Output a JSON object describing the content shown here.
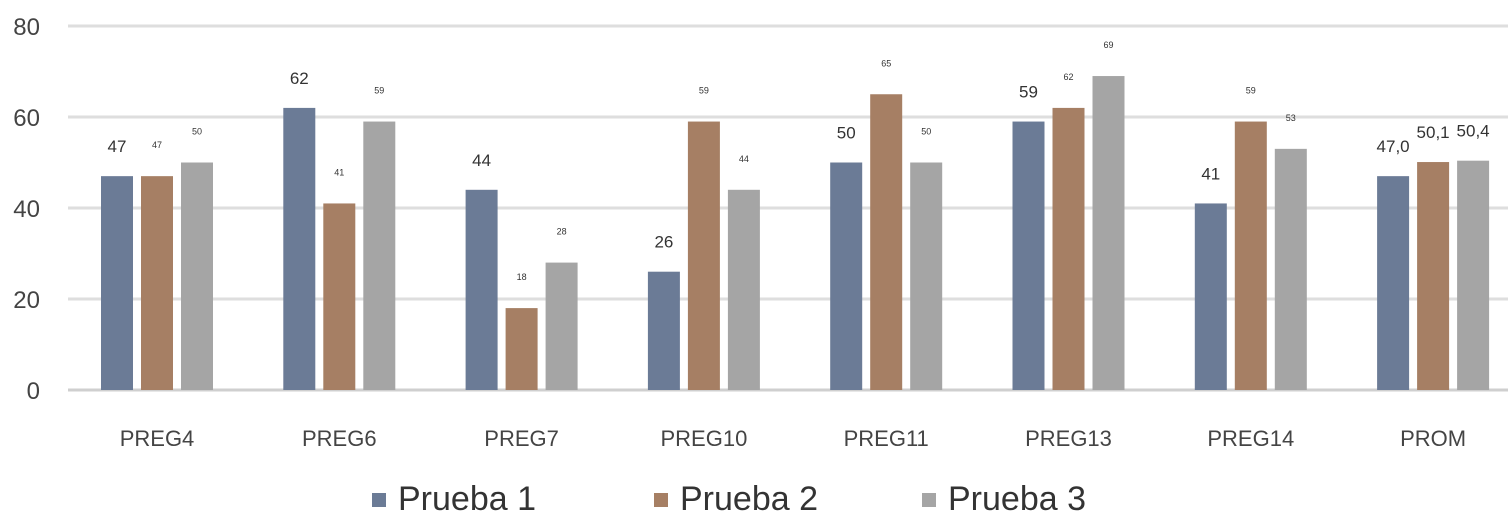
{
  "chart_data": {
    "type": "bar",
    "categories": [
      "PREG4",
      "PREG6",
      "PREG7",
      "PREG10",
      "PREG11",
      "PREG13",
      "PREG14",
      "PROM"
    ],
    "series": [
      {
        "name": "Prueba 1",
        "color": "#6b7b96",
        "values": [
          47,
          62,
          44,
          26,
          50,
          59,
          41,
          47.0
        ],
        "labels": [
          "47",
          "62",
          "44",
          "26",
          "50",
          "59",
          "41",
          "47,0"
        ]
      },
      {
        "name": "Prueba 2",
        "color": "#a67f64",
        "values": [
          47,
          41,
          18,
          59,
          65,
          62,
          59,
          50.1
        ],
        "labels": [
          "47",
          "41",
          "18",
          "59",
          "65",
          "62",
          "59",
          "50,1"
        ]
      },
      {
        "name": "Prueba 3",
        "color": "#a5a5a5",
        "values": [
          50,
          59,
          28,
          44,
          50,
          69,
          53,
          50.4
        ],
        "labels": [
          "50",
          "59",
          "28",
          "44",
          "50",
          "69",
          "53",
          "50,4"
        ]
      }
    ],
    "yticks": [
      "0",
      "20",
      "40",
      "60",
      "80"
    ],
    "ylim": [
      0,
      80
    ],
    "grid": true,
    "legend_position": "bottom",
    "title": "",
    "xlabel": "",
    "ylabel": ""
  }
}
